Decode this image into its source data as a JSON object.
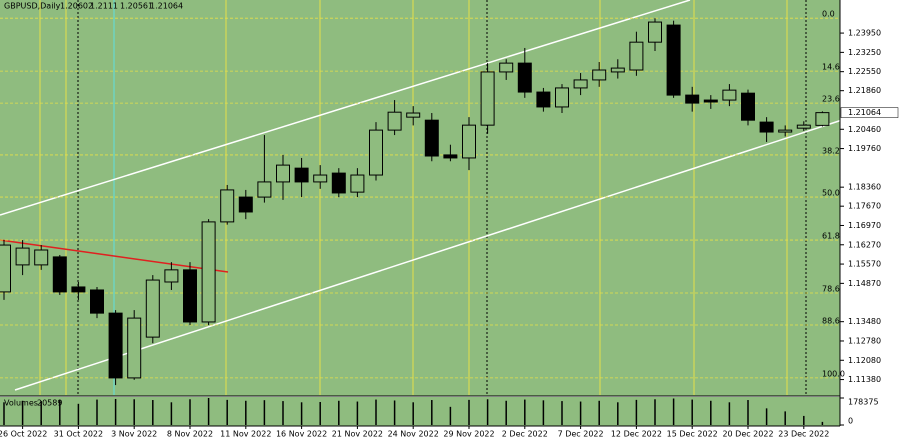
{
  "chart_data": {
    "type": "candlestick",
    "title": "GBPUSD,Daily",
    "categories": [
      null,
      "26 Oct 2022",
      null,
      null,
      "31 Oct 2022",
      null,
      null,
      "3 Nov 2022",
      null,
      null,
      "8 Nov 2022",
      null,
      null,
      "11 Nov 2022",
      null,
      null,
      "16 Nov 2022",
      null,
      null,
      "21 Nov 2022",
      null,
      null,
      "24 Nov 2022",
      null,
      null,
      "29 Nov 2022",
      null,
      null,
      "2 Dec 2022",
      null,
      null,
      "7 Dec 2022",
      null,
      null,
      "12 Dec 2022",
      null,
      null,
      "15 Dec 2022",
      null,
      null,
      "20 Dec 2022",
      null,
      null,
      "23 Dec 2022",
      null
    ],
    "open": [
      1.1456,
      1.1554,
      1.1554,
      1.1583,
      1.1474,
      1.1463,
      1.1379,
      1.1144,
      1.1292,
      1.1492,
      1.1536,
      1.1347,
      1.171,
      1.18,
      1.18,
      1.1855,
      1.1905,
      1.1855,
      1.1887,
      1.1818,
      1.188,
      1.2043,
      1.209,
      1.2079,
      1.1953,
      1.1942,
      1.2061,
      1.2254,
      1.2286,
      1.2181,
      1.2127,
      1.2196,
      1.2225,
      1.2254,
      1.2261,
      1.2362,
      1.2424,
      1.217,
      1.2152,
      1.2152,
      1.2177,
      1.2072,
      1.2036,
      1.205,
      1.20602
    ],
    "high": [
      1.1644,
      1.1644,
      1.1626,
      1.159,
      1.1492,
      1.1474,
      1.139,
      1.139,
      1.1517,
      1.1564,
      1.1564,
      1.172,
      1.1844,
      1.1826,
      1.2025,
      1.1953,
      1.1942,
      1.1916,
      1.1905,
      1.1905,
      1.2072,
      1.2152,
      1.213,
      1.2105,
      1.199,
      1.209,
      1.2286,
      1.23,
      1.2341,
      1.2196,
      1.221,
      1.225,
      1.229,
      1.23,
      1.24,
      1.2449,
      1.244,
      1.22,
      1.217,
      1.221,
      1.219,
      1.209,
      1.206,
      1.2075,
      1.2111
    ],
    "low": [
      1.1427,
      1.1517,
      1.1536,
      1.1445,
      1.1427,
      1.1361,
      1.1118,
      1.1137,
      1.127,
      1.1463,
      1.1336,
      1.1336,
      1.17,
      1.172,
      1.178,
      1.179,
      1.18,
      1.183,
      1.18,
      1.18,
      1.186,
      1.2025,
      1.206,
      1.193,
      1.193,
      1.1898,
      1.203,
      1.2225,
      1.216,
      1.211,
      1.2105,
      1.217,
      1.22,
      1.223,
      1.224,
      1.233,
      1.216,
      1.211,
      1.212,
      1.213,
      1.206,
      1.2,
      1.202,
      1.204,
      1.20561
    ],
    "close": [
      1.1626,
      1.1615,
      1.1608,
      1.1456,
      1.1456,
      1.1379,
      1.1144,
      1.1361,
      1.1499,
      1.1536,
      1.1347,
      1.171,
      1.1826,
      1.1746,
      1.1855,
      1.1916,
      1.1855,
      1.188,
      1.1815,
      1.188,
      1.2043,
      1.2108,
      1.2105,
      1.1949,
      1.1942,
      1.2061,
      1.2254,
      1.2286,
      1.2181,
      1.2127,
      1.2196,
      1.2225,
      1.2261,
      1.2268,
      1.2362,
      1.2435,
      1.217,
      1.2141,
      1.2145,
      1.2188,
      1.2079,
      1.2036,
      1.2043,
      1.2061,
      1.21064
    ],
    "volumes": [
      150000,
      160000,
      158000,
      165000,
      140000,
      168000,
      172000,
      170000,
      165000,
      150000,
      170000,
      178375,
      166000,
      160000,
      164000,
      158000,
      150000,
      152000,
      160000,
      155000,
      168000,
      162000,
      150000,
      165000,
      120000,
      166000,
      170000,
      160000,
      168000,
      163000,
      158000,
      155000,
      160000,
      150000,
      166000,
      170000,
      175000,
      168000,
      160000,
      150000,
      165000,
      110000,
      90000,
      60000,
      20589
    ],
    "volume_label": "Volumes",
    "volume_ylim": [
      0,
      178375
    ],
    "volume_ticks": [
      178375,
      0
    ],
    "ylim": [
      1.2515,
      1.1082
    ],
    "yticks": [
      {
        "value": 1.2395,
        "label": "1.23950"
      },
      {
        "value": 1.2325,
        "label": "1.23250"
      },
      {
        "value": 1.2255,
        "label": "1.22550"
      },
      {
        "value": 1.2186,
        "label": "1.21860"
      },
      {
        "value": 1.2046,
        "label": "1.20460"
      },
      {
        "value": 1.1976,
        "label": "1.19760"
      },
      {
        "value": 1.1836,
        "label": "1.18360"
      },
      {
        "value": 1.1767,
        "label": "1.17670"
      },
      {
        "value": 1.1697,
        "label": "1.16970"
      },
      {
        "value": 1.1627,
        "label": "1.16270"
      },
      {
        "value": 1.1557,
        "label": "1.15570"
      },
      {
        "value": 1.1487,
        "label": "1.14870"
      },
      {
        "value": 1.1348,
        "label": "1.13480"
      },
      {
        "value": 1.1278,
        "label": "1.12780"
      },
      {
        "value": 1.1208,
        "label": "1.12080"
      },
      {
        "value": 1.1138,
        "label": "1.11380"
      }
    ],
    "fib_levels": [
      {
        "value": 1.2449,
        "label": "0.0"
      },
      {
        "value": 1.2257,
        "label": "14.6"
      },
      {
        "value": 1.2141,
        "label": "23.6"
      },
      {
        "value": 1.1953,
        "label": "38.2"
      },
      {
        "value": 1.18,
        "label": "50.0"
      },
      {
        "value": 1.1644,
        "label": "61.8"
      },
      {
        "value": 1.1452,
        "label": "78.6"
      },
      {
        "value": 1.1336,
        "label": "88.6"
      },
      {
        "value": 1.1144,
        "label": "100.0"
      }
    ],
    "colors": {
      "background": "#8fbc7f",
      "bull": "#8fbc7f",
      "bear": "#000000",
      "fib": "#e6e04a"
    }
  }
}
